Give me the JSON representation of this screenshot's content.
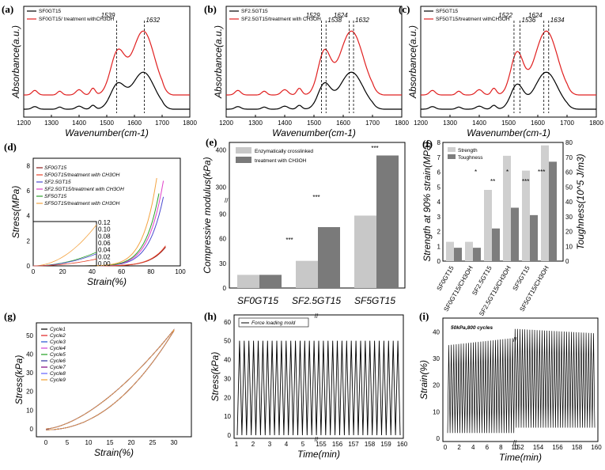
{
  "chart_data": [
    {
      "panel": "(a)",
      "type": "line",
      "xlabel": "Wavenumber(cm-1)",
      "ylabel": "Absorbance(a.u.)",
      "xticks": [
        "1200",
        "1300",
        "1400",
        "1500",
        "1600",
        "1700",
        "1800"
      ],
      "legend": [
        "SF0GT15",
        "SF0GT15/ treatment withCH3OH"
      ],
      "peaks": [
        "1539",
        "1632"
      ]
    },
    {
      "panel": "(b)",
      "type": "line",
      "xlabel": "Wavenumber(cm-1)",
      "ylabel": "Absorbance(a.u.)",
      "xticks": [
        "1200",
        "1300",
        "1400",
        "1500",
        "1600",
        "1700",
        "1800"
      ],
      "legend": [
        "SF2.5GT15",
        "SF2.5GT15/treatment with CH3OH"
      ],
      "peaks": [
        "1529",
        "1538",
        "1624",
        "1632"
      ]
    },
    {
      "panel": "(c)",
      "type": "line",
      "xlabel": "Wavenumber(cm-1)",
      "ylabel": "Absorbance(a.u.)",
      "xticks": [
        "1200",
        "1300",
        "1400",
        "1500",
        "1600",
        "1700",
        "1800"
      ],
      "legend": [
        "SF5GT15",
        "SF5GT15/treatment withCH3OH"
      ],
      "peaks": [
        "1522",
        "1536",
        "1624",
        "1634"
      ]
    },
    {
      "panel": "(d)",
      "type": "line",
      "xlabel": "Strain(%)",
      "ylabel": "Stress(MPa)",
      "xticks": [
        "0",
        "20",
        "40",
        "60",
        "80",
        "100"
      ],
      "yticks": [
        "0",
        "2",
        "4",
        "6",
        "8"
      ],
      "inset_yticks": [
        "0.12",
        "0.10",
        "0.08",
        "0.06",
        "0.04",
        "0.02",
        "0.00"
      ],
      "legend": [
        "SF0GT15",
        "SF0GT15/treatment with CH3OH",
        "SF2.5GT15",
        "SF2.5GT15/treatment with CH3OH",
        "SF5GT15",
        "SF5GT15/treatment with CH3OH"
      ],
      "colors": [
        "#8b1a1a",
        "#e8442a",
        "#4a4ad0",
        "#e040c8",
        "#2aa02a",
        "#f4a340"
      ]
    },
    {
      "panel": "(e)",
      "type": "bar",
      "ylabel": "Compressive modulus(kPa)",
      "categories": [
        "SF0GT15",
        "SF2.5GT15",
        "SF5GT15"
      ],
      "series": [
        {
          "name": "Enzymatically crosslinked",
          "values": [
            16,
            33,
            88
          ],
          "color": "#c8c8c8"
        },
        {
          "name": "treatment with CH3OH",
          "values": [
            16,
            74,
            385
          ],
          "color": "#7a7a7a"
        }
      ],
      "yticks": [
        "0",
        "30",
        "60",
        "90",
        "300",
        "400"
      ],
      "significance": [
        "***",
        "***",
        "***"
      ]
    },
    {
      "panel": "(f)",
      "type": "bar",
      "ylabel": "Strength at 90% strain(MPa)",
      "y2label": "Toughness(10^5 J/m3)",
      "categories": [
        "SF0GT15",
        "SF0GT15/CH3OH",
        "SF2.5GT15",
        "SF2.5GT15/CH3OH",
        "SF5GT15",
        "SF5GT15/CH3OH"
      ],
      "series": [
        {
          "name": "Strength",
          "values": [
            1.3,
            1.3,
            4.8,
            7.1,
            6.1,
            7.8
          ],
          "color": "#cfcfcf"
        },
        {
          "name": "Toughness",
          "values": [
            9,
            9,
            22,
            36,
            31,
            67
          ],
          "color": "#7d7d7d"
        }
      ],
      "yticks": [
        "0",
        "1",
        "2",
        "3",
        "4",
        "5",
        "6",
        "7",
        "8"
      ],
      "y2ticks": [
        "0",
        "10",
        "20",
        "30",
        "40",
        "50",
        "60",
        "70",
        "80"
      ],
      "significance": [
        "*",
        "**",
        "*",
        "***",
        "***"
      ]
    },
    {
      "panel": "(g)",
      "type": "line",
      "xlabel": "Strain(%)",
      "ylabel": "Stress(kPa)",
      "xticks": [
        "0",
        "5",
        "10",
        "15",
        "20",
        "25",
        "30"
      ],
      "yticks": [
        "0",
        "10",
        "20",
        "30",
        "40",
        "50"
      ],
      "legend": [
        "Cycle1",
        "Cycle2",
        "Cycle3",
        "Cycle4",
        "Cycle5",
        "Cycle6",
        "Cycle7",
        "Cycle8",
        "Cycle9"
      ],
      "colors": [
        "#000000",
        "#e02020",
        "#2050d0",
        "#d040d0",
        "#20a020",
        "#3030a0",
        "#800080",
        "#6060ff",
        "#f0a030"
      ]
    },
    {
      "panel": "(h)",
      "type": "line",
      "xlabel": "Time(min)",
      "ylabel": "Stress(kPa)",
      "xticks": [
        "1",
        "2",
        "3",
        "4",
        "5",
        "155",
        "156",
        "157",
        "158",
        "159",
        "160"
      ],
      "yticks": [
        "0",
        "10",
        "20",
        "30",
        "40",
        "50",
        "60"
      ],
      "legend": [
        "Force loading mold"
      ],
      "amplitude": 50
    },
    {
      "panel": "(i)",
      "type": "line",
      "xlabel": "Time(min)",
      "ylabel": "Strain(%)",
      "xticks": [
        "0",
        "2",
        "4",
        "6",
        "8",
        "10",
        "152",
        "154",
        "156",
        "158",
        "160"
      ],
      "yticks": [
        "0",
        "10",
        "20",
        "30",
        "40"
      ],
      "annotation": "50kPa,800 cycles"
    }
  ]
}
